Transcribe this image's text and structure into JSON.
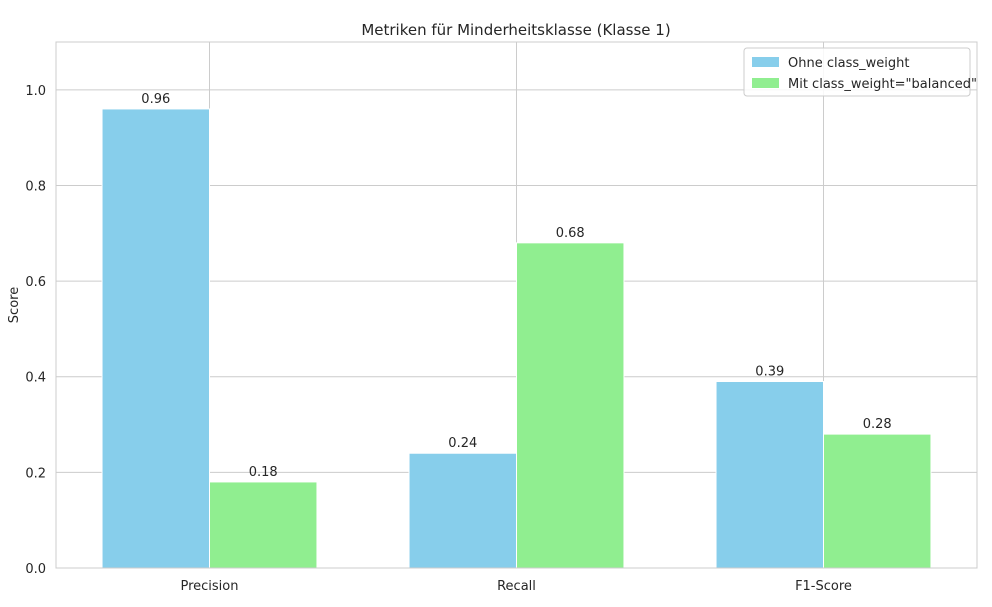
{
  "chart_data": {
    "type": "bar",
    "title": "Metriken für Minderheitsklasse (Klasse 1)",
    "xlabel": "",
    "ylabel": "Score",
    "categories": [
      "Precision",
      "Recall",
      "F1-Score"
    ],
    "series": [
      {
        "name": "Ohne class_weight",
        "values": [
          0.96,
          0.24,
          0.39
        ],
        "labels": [
          "0.96",
          "0.24",
          "0.39"
        ],
        "color": "#87ceeb"
      },
      {
        "name": "Mit class_weight=\"balanced\"",
        "values": [
          0.18,
          0.68,
          0.28
        ],
        "labels": [
          "0.18",
          "0.68",
          "0.28"
        ],
        "color": "#90ee90"
      }
    ],
    "ylim": [
      0,
      1.1
    ],
    "yticks": [
      "0.0",
      "0.2",
      "0.4",
      "0.6",
      "0.8",
      "1.0"
    ],
    "grid": true,
    "legend": "top-right"
  }
}
